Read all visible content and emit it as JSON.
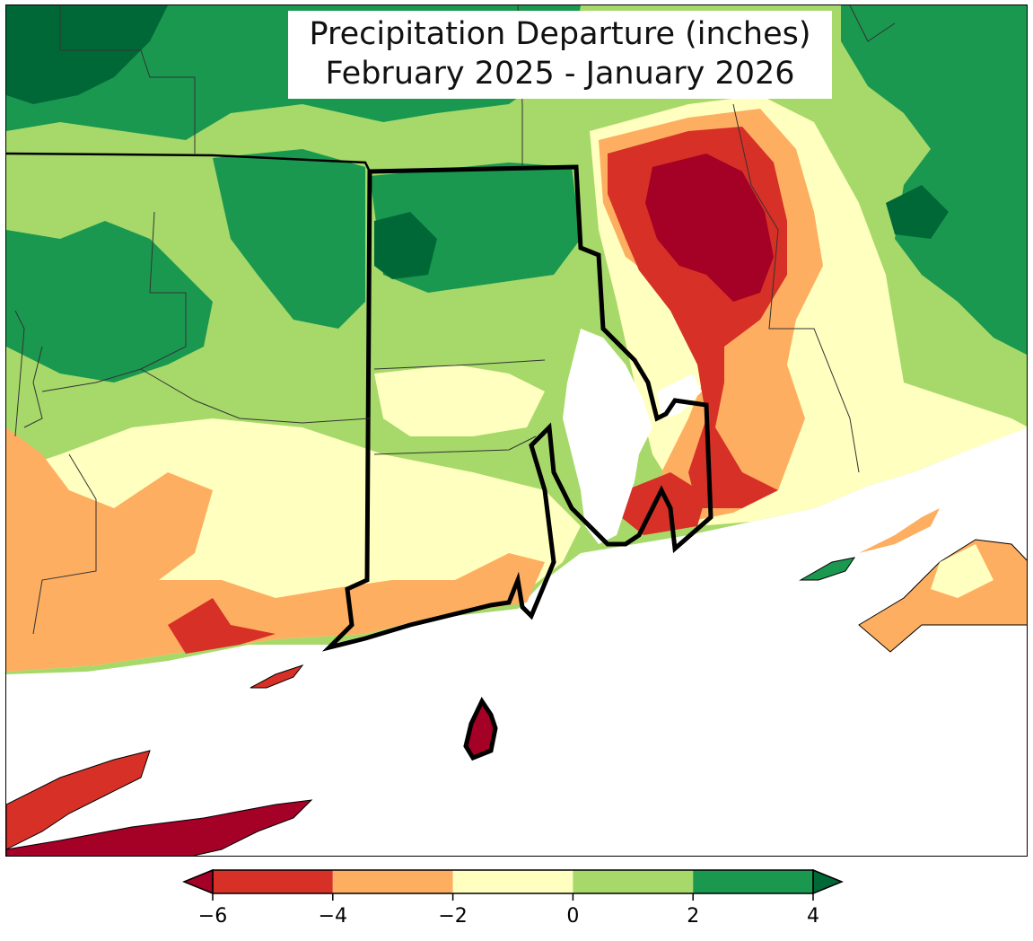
{
  "title": {
    "line1": "Precipitation Departure (inches)",
    "line2": "February 2025 - January 2026"
  },
  "colors": {
    "water": "#ffffff",
    "very_dry": "#a50026",
    "dry_6_4": "#d73027",
    "dry_4_2": "#fdae61",
    "dry_2_0": "#ffffbf",
    "wet_0_2": "#a6d96a",
    "wet_2_4": "#1a9850",
    "very_wet": "#006837",
    "border": "#000000"
  },
  "colorbar": {
    "ticks": [
      "−6",
      "−4",
      "−2",
      "0",
      "2",
      "4"
    ],
    "bins": [
      "#d73027",
      "#fdae61",
      "#ffffbf",
      "#a6d96a",
      "#1a9850"
    ],
    "extend_low": "#a50026",
    "extend_high": "#006837"
  }
}
